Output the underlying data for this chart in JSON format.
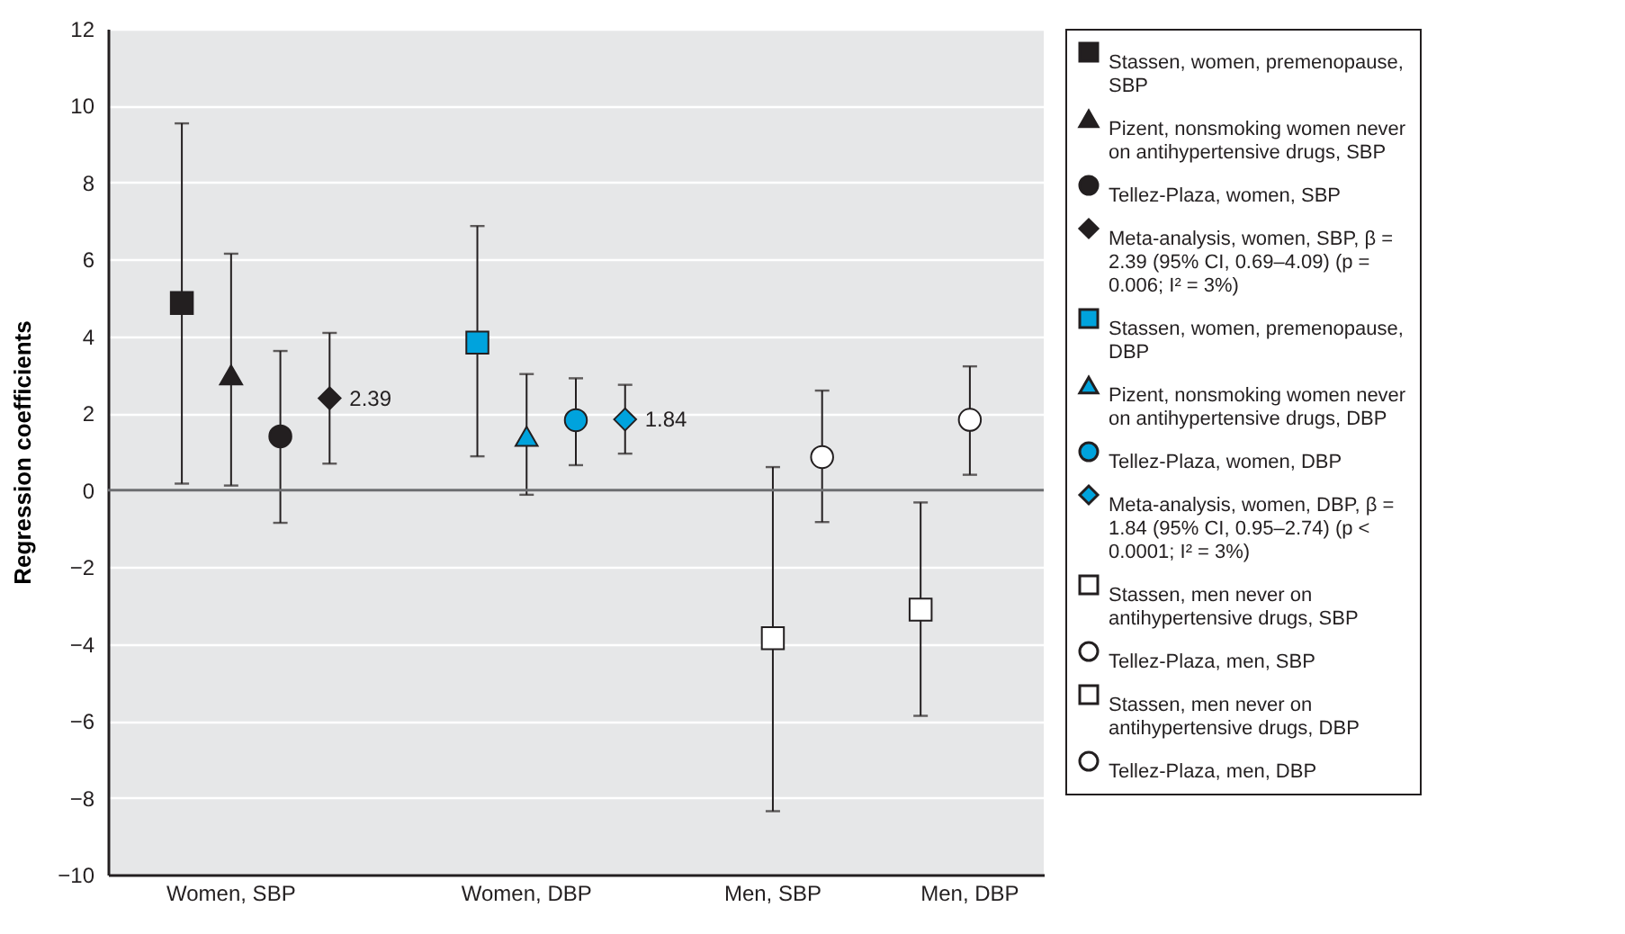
{
  "chart_data": {
    "type": "scatter",
    "ylabel": "Regression coefficients",
    "categories": [
      null,
      "Women, SBP",
      null,
      null,
      null,
      null,
      null,
      "Women, DBP",
      null,
      null,
      null,
      null,
      "Men, SBP",
      null,
      null,
      null,
      "Men, DBP"
    ],
    "ylim": [
      -10,
      12
    ],
    "yticks": [
      -10,
      -8,
      -6,
      -4,
      -2,
      0,
      2,
      4,
      6,
      8,
      10,
      12
    ],
    "grid": "y",
    "legend": "right",
    "ref_lines": [
      {
        "axis": "y",
        "value": 0,
        "color": "#6d6e71"
      }
    ],
    "series": [
      {
        "name": "Stassen, women, premenopause, SBP",
        "color": "#231f20",
        "marker": "square",
        "values": [
          4.87,
          null,
          null,
          null,
          null,
          null,
          null,
          null,
          null,
          null,
          null,
          null,
          null,
          null,
          null,
          null,
          null
        ],
        "errors": [
          [
            0.17,
            9.54
          ],
          null,
          null,
          null,
          null,
          null,
          null,
          null,
          null,
          null,
          null,
          null,
          null,
          null,
          null,
          null,
          null
        ]
      },
      {
        "name": "Pizent, nonsmoking women never on antihypertensive drugs, SBP",
        "color": "#231f20",
        "marker": "triangle",
        "values": [
          null,
          3.0,
          null,
          null,
          null,
          null,
          null,
          null,
          null,
          null,
          null,
          null,
          null,
          null,
          null,
          null,
          null
        ],
        "errors": [
          null,
          [
            0.12,
            6.15
          ],
          null,
          null,
          null,
          null,
          null,
          null,
          null,
          null,
          null,
          null,
          null,
          null,
          null,
          null,
          null
        ]
      },
      {
        "name": "Tellez-Plaza, women, SBP",
        "color": "#231f20",
        "marker": "circle",
        "values": [
          null,
          null,
          1.4,
          null,
          null,
          null,
          null,
          null,
          null,
          null,
          null,
          null,
          null,
          null,
          null,
          null,
          null
        ],
        "errors": [
          null,
          null,
          [
            -0.85,
            3.62
          ],
          null,
          null,
          null,
          null,
          null,
          null,
          null,
          null,
          null,
          null,
          null,
          null,
          null,
          null
        ]
      },
      {
        "name": "Meta-analysis, women, SBP, β = 2.39 (95% CI, 0.69–4.09) (p = 0.006; I² = 3%)",
        "color": "#231f20",
        "marker": "diamond",
        "values": [
          null,
          null,
          null,
          2.39,
          null,
          null,
          null,
          null,
          null,
          null,
          null,
          null,
          null,
          null,
          null,
          null,
          null
        ],
        "errors": [
          null,
          null,
          null,
          [
            0.69,
            4.09
          ],
          null,
          null,
          null,
          null,
          null,
          null,
          null,
          null,
          null,
          null,
          null,
          null,
          null
        ],
        "value_labels": [
          null,
          null,
          null,
          "2.39",
          null,
          null,
          null,
          null,
          null,
          null,
          null,
          null,
          null,
          null,
          null,
          null,
          null
        ]
      },
      {
        "name": "Stassen, women, premenopause, DBP",
        "color": "#00a3dd",
        "marker": "square",
        "values": [
          null,
          null,
          null,
          null,
          null,
          null,
          3.84,
          null,
          null,
          null,
          null,
          null,
          null,
          null,
          null,
          null,
          null
        ],
        "errors": [
          null,
          null,
          null,
          null,
          null,
          null,
          [
            0.88,
            6.87
          ],
          null,
          null,
          null,
          null,
          null,
          null,
          null,
          null,
          null,
          null
        ]
      },
      {
        "name": "Pizent, nonsmoking women never on antihypertensive drugs, DBP",
        "color": "#00a3dd",
        "marker": "triangle",
        "values": [
          null,
          null,
          null,
          null,
          null,
          null,
          null,
          1.4,
          null,
          null,
          null,
          null,
          null,
          null,
          null,
          null,
          null
        ],
        "errors": [
          null,
          null,
          null,
          null,
          null,
          null,
          null,
          [
            -0.12,
            3.02
          ],
          null,
          null,
          null,
          null,
          null,
          null,
          null,
          null,
          null
        ]
      },
      {
        "name": "Tellez-Plaza, women, DBP",
        "color": "#00a3dd",
        "marker": "circle",
        "values": [
          null,
          null,
          null,
          null,
          null,
          null,
          null,
          null,
          1.82,
          null,
          null,
          null,
          null,
          null,
          null,
          null,
          null
        ],
        "errors": [
          null,
          null,
          null,
          null,
          null,
          null,
          null,
          null,
          [
            0.65,
            2.91
          ],
          null,
          null,
          null,
          null,
          null,
          null,
          null,
          null
        ]
      },
      {
        "name": "Meta-analysis, women, DBP, β = 1.84 (95% CI, 0.95–2.74) (p < 0.0001; I² = 3%)",
        "color": "#00a3dd",
        "marker": "diamond",
        "values": [
          null,
          null,
          null,
          null,
          null,
          null,
          null,
          null,
          null,
          1.84,
          null,
          null,
          null,
          null,
          null,
          null,
          null
        ],
        "errors": [
          null,
          null,
          null,
          null,
          null,
          null,
          null,
          null,
          null,
          [
            0.95,
            2.74
          ],
          null,
          null,
          null,
          null,
          null,
          null,
          null
        ],
        "value_labels": [
          null,
          null,
          null,
          null,
          null,
          null,
          null,
          null,
          null,
          "1.84",
          null,
          null,
          null,
          null,
          null,
          null,
          null
        ]
      },
      {
        "name": "Stassen, men never on antihypertensive drugs, SBP",
        "color": "#ffffff",
        "marker": "square",
        "values": [
          null,
          null,
          null,
          null,
          null,
          null,
          null,
          null,
          null,
          null,
          null,
          null,
          -3.85,
          null,
          null,
          null,
          null
        ],
        "errors": [
          null,
          null,
          null,
          null,
          null,
          null,
          null,
          null,
          null,
          null,
          null,
          null,
          [
            -8.35,
            0.6
          ],
          null,
          null,
          null,
          null
        ]
      },
      {
        "name": "Tellez-Plaza, men, SBP",
        "color": "#ffffff",
        "marker": "circle",
        "values": [
          null,
          null,
          null,
          null,
          null,
          null,
          null,
          null,
          null,
          null,
          null,
          null,
          null,
          0.86,
          null,
          null,
          null
        ],
        "errors": [
          null,
          null,
          null,
          null,
          null,
          null,
          null,
          null,
          null,
          null,
          null,
          null,
          null,
          [
            -0.83,
            2.59
          ],
          null,
          null,
          null
        ]
      },
      {
        "name": "Stassen, men never on antihypertensive drugs, DBP",
        "color": "#ffffff",
        "marker": "square",
        "values": [
          null,
          null,
          null,
          null,
          null,
          null,
          null,
          null,
          null,
          null,
          null,
          null,
          null,
          null,
          null,
          -3.11,
          null
        ],
        "errors": [
          null,
          null,
          null,
          null,
          null,
          null,
          null,
          null,
          null,
          null,
          null,
          null,
          null,
          null,
          null,
          [
            -5.87,
            -0.32
          ],
          null
        ]
      },
      {
        "name": "Tellez-Plaza, men, DBP",
        "color": "#ffffff",
        "marker": "circle",
        "values": [
          null,
          null,
          null,
          null,
          null,
          null,
          null,
          null,
          null,
          null,
          null,
          null,
          null,
          null,
          null,
          null,
          1.83
        ],
        "errors": [
          null,
          null,
          null,
          null,
          null,
          null,
          null,
          null,
          null,
          null,
          null,
          null,
          null,
          null,
          null,
          null,
          [
            0.4,
            3.22
          ]
        ]
      }
    ]
  }
}
